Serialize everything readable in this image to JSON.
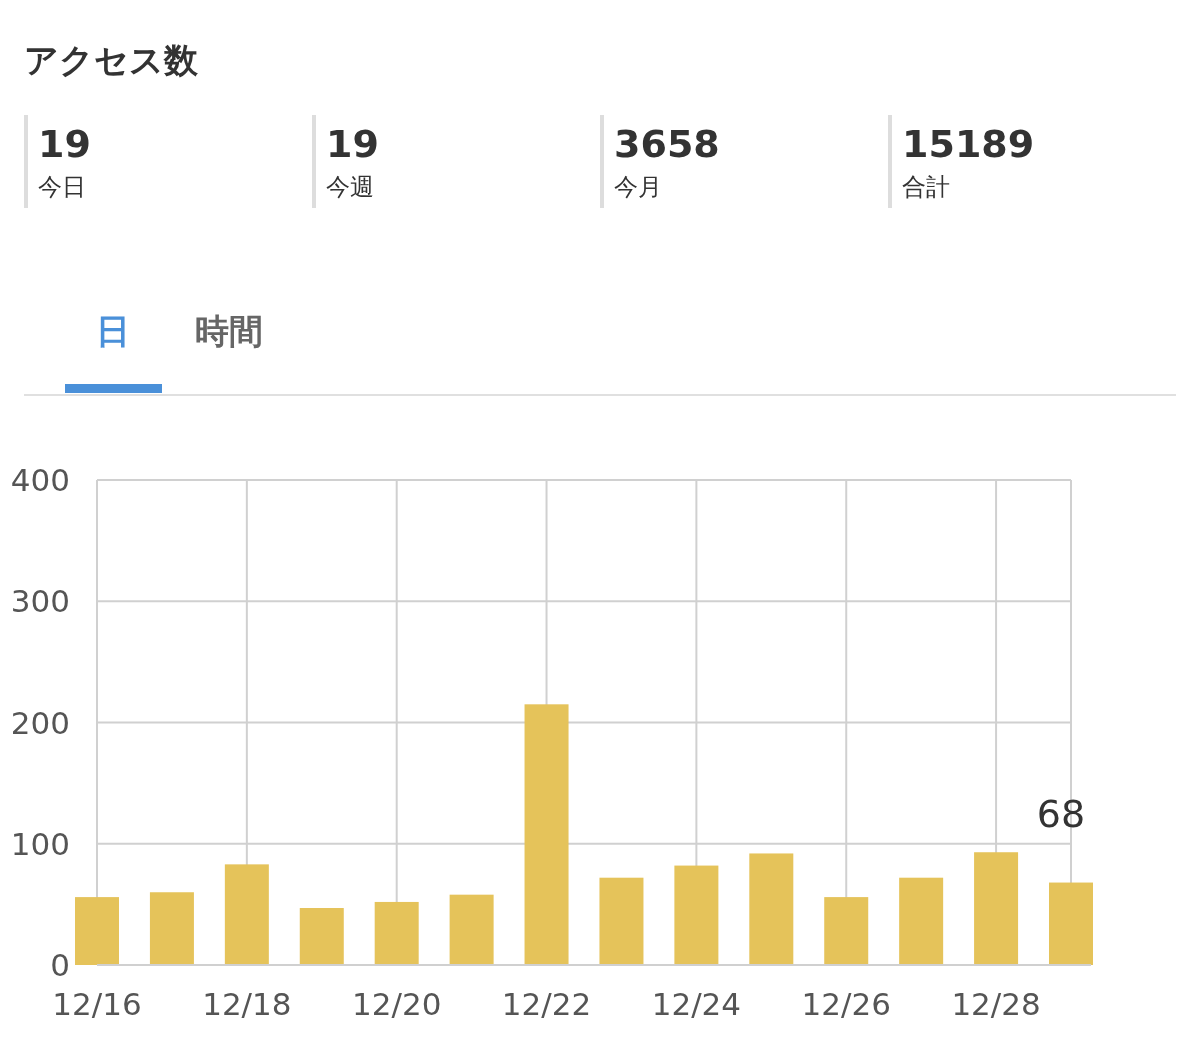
{
  "chart_data": [
    {
      "type": "other",
      "title": "アクセス数",
      "annotations": [
        "19",
        "今日",
        "19",
        "今週",
        "3658",
        "今月",
        "15189",
        "合計"
      ]
    },
    {
      "type": "bar",
      "annotations": [
        "日",
        "時間"
      ],
      "categories": [
        "12/16",
        null,
        "12/18",
        null,
        "12/20",
        null,
        "12/22",
        null,
        "12/24",
        null,
        "12/26",
        null,
        "12/28",
        null
      ],
      "values": [
        56,
        60,
        83,
        47,
        52,
        58,
        215,
        72,
        82,
        92,
        56,
        72,
        93,
        68
      ],
      "value_labels": [
        null,
        null,
        null,
        null,
        null,
        null,
        null,
        null,
        null,
        null,
        null,
        null,
        null,
        "68"
      ],
      "color": "#e5c35a",
      "ylim": [
        0,
        400
      ],
      "yticks": [
        0,
        100,
        200,
        300,
        400
      ],
      "grid": true
    }
  ]
}
